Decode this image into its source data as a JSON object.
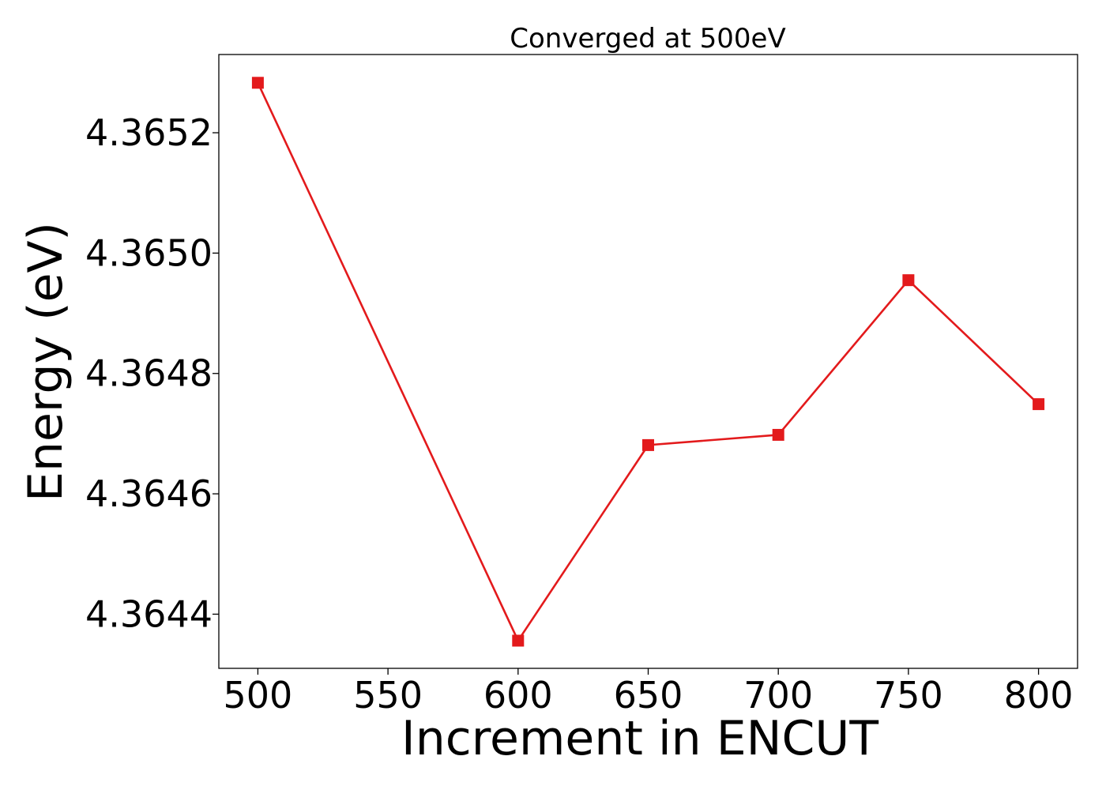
{
  "chart_data": {
    "type": "line",
    "title": "Converged at 500eV",
    "xlabel": "Increment in ENCUT",
    "ylabel": "Energy (eV)",
    "x": [
      500,
      600,
      650,
      700,
      750,
      800
    ],
    "series": [
      {
        "values": [
          4.365283,
          4.364356,
          4.364681,
          4.364698,
          4.364955,
          4.364749
        ],
        "color": "#e31a1c",
        "marker": "square"
      }
    ],
    "xlim": [
      485,
      815
    ],
    "ylim": [
      4.36431,
      4.36533
    ],
    "xticks": [
      500,
      550,
      600,
      650,
      700,
      750,
      800
    ],
    "yticks": [
      4.3644,
      4.3646,
      4.3648,
      4.365,
      4.3652
    ],
    "xtick_labels": [
      "500",
      "550",
      "600",
      "650",
      "700",
      "750",
      "800"
    ],
    "ytick_labels": [
      "4.3644",
      "4.3646",
      "4.3648",
      "4.3650",
      "4.3652"
    ],
    "grid": false,
    "legend": "none"
  }
}
